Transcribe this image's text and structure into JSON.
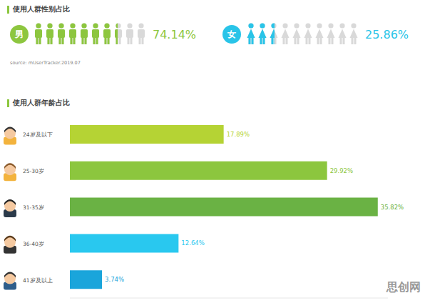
{
  "gender": {
    "title": "使用人群性别占比",
    "source": "source: mUserTracker.2019.07",
    "groups": [
      {
        "label": "男",
        "value": 74.14,
        "value_label": "74.14%",
        "color": "#8dc63f"
      },
      {
        "label": "女",
        "value": 25.86,
        "value_label": "25.86%",
        "color": "#29c4e8"
      }
    ]
  },
  "chart_data": {
    "type": "bar",
    "title": "使用人群年龄占比",
    "orientation": "horizontal",
    "categories": [
      "24岁及以下",
      "25-30岁",
      "31-35岁",
      "36-40岁",
      "41岁及以上"
    ],
    "values": [
      17.89,
      29.92,
      35.82,
      12.64,
      3.74
    ],
    "value_labels": [
      "17.89%",
      "29.92%",
      "35.82%",
      "12.64%",
      "3.74%"
    ],
    "colors": [
      "#b5d334",
      "#8cc63e",
      "#6ab244",
      "#29c8ef",
      "#1aa5db"
    ],
    "xlim": [
      0,
      37
    ],
    "data_labels": true,
    "tick_labels": "y",
    "grid": false
  },
  "watermark": "思创网"
}
